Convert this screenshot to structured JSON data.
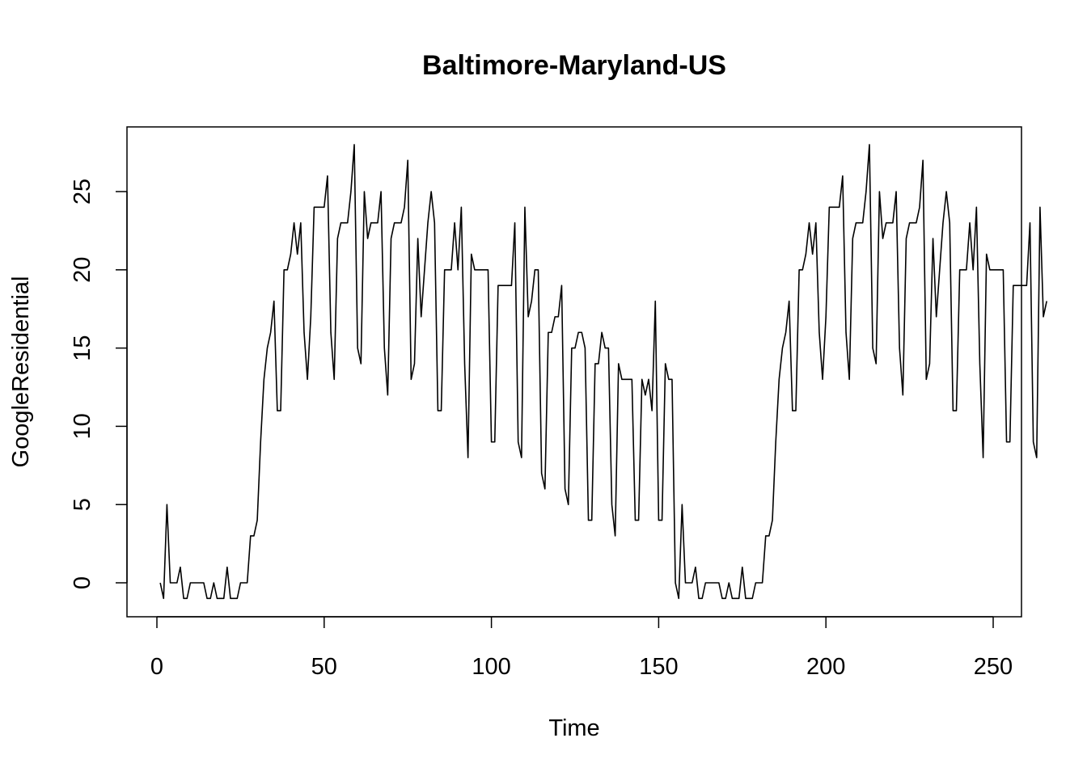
{
  "chart_data": {
    "type": "line",
    "title": "Baltimore-Maryland-US",
    "xlabel": "Time",
    "ylabel": "GoogleResidential",
    "xlim": [
      0,
      250
    ],
    "ylim": [
      0,
      25
    ],
    "x_ticks": [
      0,
      50,
      100,
      150,
      200,
      250
    ],
    "y_ticks": [
      0,
      5,
      10,
      15,
      20,
      25
    ],
    "grid": false,
    "series": [
      {
        "color": "#000000",
        "x_start": 1,
        "values": [
          0,
          -1,
          5,
          0,
          0,
          0,
          1,
          -1,
          -1,
          0,
          0,
          0,
          0,
          0,
          -1,
          -1,
          0,
          -1,
          -1,
          -1,
          1,
          -1,
          -1,
          -1,
          0,
          0,
          0,
          3,
          3,
          4,
          9,
          13,
          15,
          16,
          18,
          11,
          11,
          20,
          20,
          21,
          23,
          21,
          23,
          16,
          13,
          17,
          24,
          24,
          24,
          24,
          26,
          16,
          13,
          22,
          23,
          23,
          23,
          25,
          28,
          15,
          14,
          25,
          22,
          23,
          23,
          23,
          25,
          15,
          12,
          22,
          23,
          23,
          23,
          24,
          27,
          13,
          14,
          22,
          17,
          20,
          23,
          25,
          23,
          11,
          11,
          20,
          20,
          20,
          23,
          20,
          24,
          14,
          8,
          21,
          20,
          20,
          20,
          20,
          20,
          9,
          9,
          19,
          19,
          19,
          19,
          19,
          23,
          9,
          8,
          24,
          17,
          18,
          20,
          20,
          7,
          6,
          16,
          16,
          17,
          17,
          19,
          6,
          5,
          15,
          15,
          16,
          16,
          15,
          4,
          4,
          14,
          14,
          16,
          15,
          15,
          5,
          3,
          14,
          13,
          13,
          13,
          13,
          4,
          4,
          13,
          12,
          13,
          11,
          18,
          4,
          4,
          14,
          13,
          13,
          0,
          -1,
          5,
          0,
          0,
          0,
          1,
          -1,
          -1,
          0,
          0,
          0,
          0,
          0,
          -1,
          -1,
          0,
          -1,
          -1,
          -1,
          1,
          -1,
          -1,
          -1,
          0,
          0,
          0,
          3,
          3,
          4,
          9,
          13,
          15,
          16,
          18,
          11,
          11,
          20,
          20,
          21,
          23,
          21,
          23,
          16,
          13,
          17,
          24,
          24,
          24,
          24,
          26,
          16,
          13,
          22,
          23,
          23,
          23,
          25,
          28,
          15,
          14,
          25,
          22,
          23,
          23,
          23,
          25,
          15,
          12,
          22,
          23,
          23,
          23,
          24,
          27,
          13,
          14,
          22,
          17,
          20,
          23,
          25,
          23,
          11,
          11,
          20,
          20,
          20,
          23,
          20,
          24,
          14,
          8,
          21,
          20,
          20,
          20,
          20,
          20,
          9,
          9,
          19,
          19,
          19,
          19,
          19,
          23,
          9,
          8,
          24,
          17,
          18
        ]
      }
    ]
  }
}
